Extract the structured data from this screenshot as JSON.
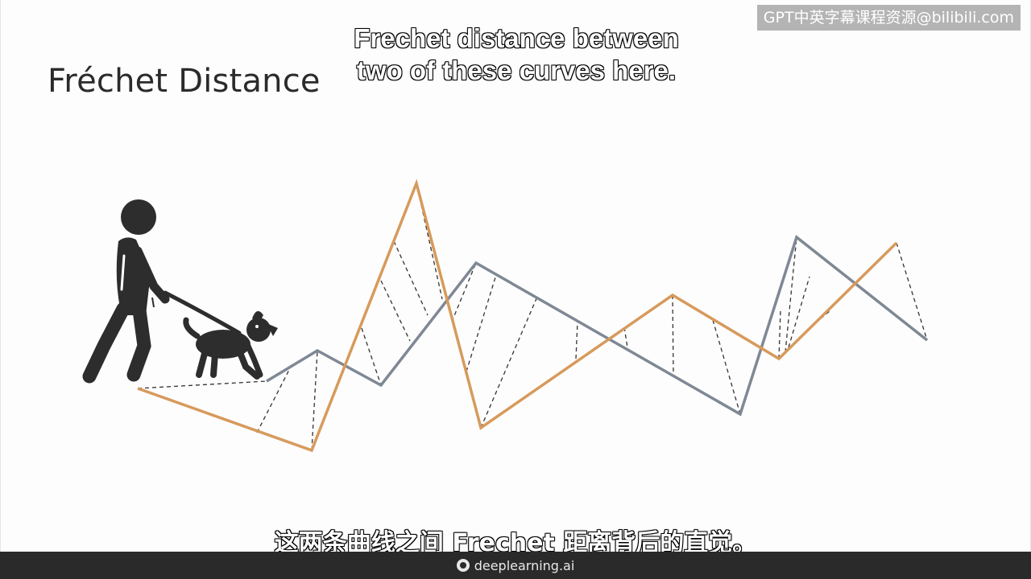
{
  "slide": {
    "title": "Fréchet Distance"
  },
  "subtitles": {
    "english_line1": "Frechet distance between",
    "english_line2": "two of these curves here.",
    "chinese": "这两条曲线之间 Frechet 距离背后的直觉。"
  },
  "watermark": {
    "text": "GPT中英字幕课程资源@bilibili.com"
  },
  "footer": {
    "brand": "deeplearning.ai"
  },
  "diagram": {
    "icons": [
      "person-walking-icon",
      "leash-icon",
      "dog-icon"
    ],
    "colors": {
      "orange_curve": "#d79a5c",
      "gray_curve": "#7f8894",
      "connector": "#333333",
      "figure": "#2d2d2d"
    }
  }
}
